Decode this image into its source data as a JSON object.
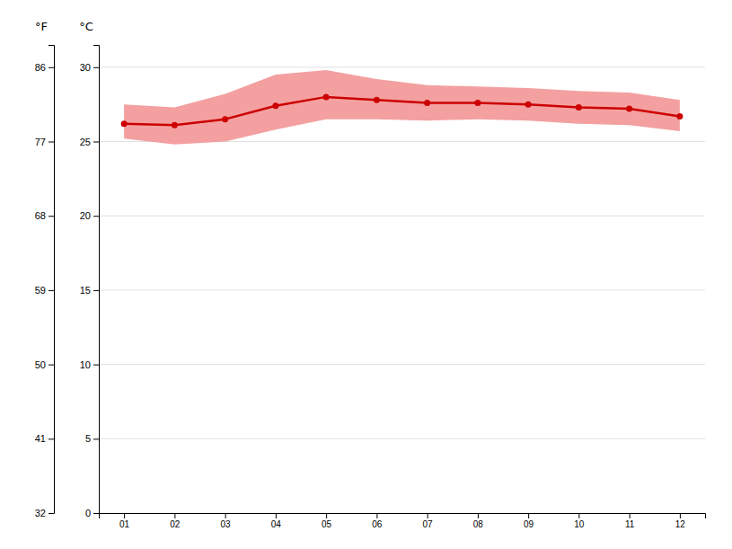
{
  "chart_data": {
    "type": "line",
    "categories": [
      "01",
      "02",
      "03",
      "04",
      "05",
      "06",
      "07",
      "08",
      "09",
      "10",
      "11",
      "12"
    ],
    "series": [
      {
        "type": "area",
        "color": "#f4a0a0",
        "low": [
          25.2,
          24.8,
          25.0,
          25.8,
          26.5,
          26.5,
          26.4,
          26.5,
          26.4,
          26.2,
          26.1,
          25.7
        ],
        "high": [
          27.5,
          27.3,
          28.2,
          29.5,
          29.8,
          29.2,
          28.8,
          28.7,
          28.6,
          28.4,
          28.3,
          27.8
        ]
      },
      {
        "type": "line",
        "color": "#cc0000",
        "marker": "circle",
        "values": [
          26.2,
          26.1,
          26.5,
          27.4,
          28.0,
          27.8,
          27.6,
          27.6,
          27.5,
          27.3,
          27.2,
          26.7
        ]
      }
    ],
    "ylabel": "°C",
    "ylim": [
      0,
      31.5
    ],
    "yticks": [
      0,
      5,
      10,
      15,
      20,
      25,
      30
    ],
    "y2label": "°F",
    "y2lim": [
      32,
      88.7
    ],
    "y2ticks": [
      32,
      41,
      50,
      59,
      68,
      77,
      86
    ],
    "grid": true
  }
}
